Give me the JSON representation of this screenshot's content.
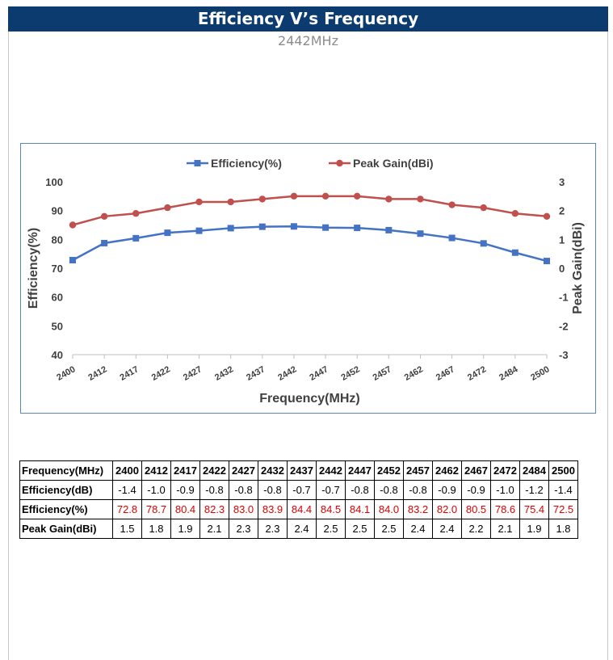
{
  "header": {
    "title": "Efficiency V’s Frequency",
    "subtitle": "2442MHz"
  },
  "colors": {
    "header_bg": "#0b3b6f",
    "efficiency": "#4472c4",
    "peak_gain": "#c0504d",
    "highlight": "#e00000"
  },
  "chart_data": {
    "type": "line",
    "title": "",
    "xlabel": "Frequency(MHz)",
    "ylabel": "Efficiency(%)",
    "y2label": "Peak Gain(dBi)",
    "categories": [
      "2400",
      "2412",
      "2417",
      "2422",
      "2427",
      "2432",
      "2437",
      "2442",
      "2447",
      "2452",
      "2457",
      "2462",
      "2467",
      "2472",
      "2484",
      "2500"
    ],
    "ylim": [
      40,
      100
    ],
    "yticks": [
      "40",
      "50",
      "60",
      "70",
      "80",
      "90",
      "100"
    ],
    "y2lim": [
      -3,
      3
    ],
    "y2ticks": [
      "-3",
      "-2",
      "-1",
      "0",
      "1",
      "2",
      "3"
    ],
    "legend_position": "top",
    "grid": false,
    "series": [
      {
        "name": "Efficiency(%)",
        "axis": "left",
        "marker": "square",
        "values": [
          72.8,
          78.7,
          80.4,
          82.3,
          83.0,
          83.9,
          84.4,
          84.5,
          84.1,
          84.0,
          83.2,
          82.0,
          80.5,
          78.6,
          75.4,
          72.5
        ]
      },
      {
        "name": "Peak Gain(dBi)",
        "axis": "right",
        "marker": "circle",
        "values": [
          1.5,
          1.8,
          1.9,
          2.1,
          2.3,
          2.3,
          2.4,
          2.5,
          2.5,
          2.5,
          2.4,
          2.4,
          2.2,
          2.1,
          1.9,
          1.8
        ]
      }
    ]
  },
  "table": {
    "header_label": "Frequency(MHz)",
    "columns": [
      "2400",
      "2412",
      "2417",
      "2422",
      "2427",
      "2432",
      "2437",
      "2442",
      "2447",
      "2452",
      "2457",
      "2462",
      "2467",
      "2472",
      "2484",
      "2500"
    ],
    "rows": [
      {
        "label": "Efficiency(dB)",
        "highlight": false,
        "values": [
          "-1.4",
          "-1.0",
          "-0.9",
          "-0.8",
          "-0.8",
          "-0.8",
          "-0.7",
          "-0.7",
          "-0.8",
          "-0.8",
          "-0.8",
          "-0.9",
          "-0.9",
          "-1.0",
          "-1.2",
          "-1.4"
        ]
      },
      {
        "label": "Efficiency(%)",
        "highlight": true,
        "values": [
          "72.8",
          "78.7",
          "80.4",
          "82.3",
          "83.0",
          "83.9",
          "84.4",
          "84.5",
          "84.1",
          "84.0",
          "83.2",
          "82.0",
          "80.5",
          "78.6",
          "75.4",
          "72.5"
        ]
      },
      {
        "label": "Peak Gain(dBi)",
        "highlight": false,
        "values": [
          "1.5",
          "1.8",
          "1.9",
          "2.1",
          "2.3",
          "2.3",
          "2.4",
          "2.5",
          "2.5",
          "2.5",
          "2.4",
          "2.4",
          "2.2",
          "2.1",
          "1.9",
          "1.8"
        ]
      }
    ]
  }
}
